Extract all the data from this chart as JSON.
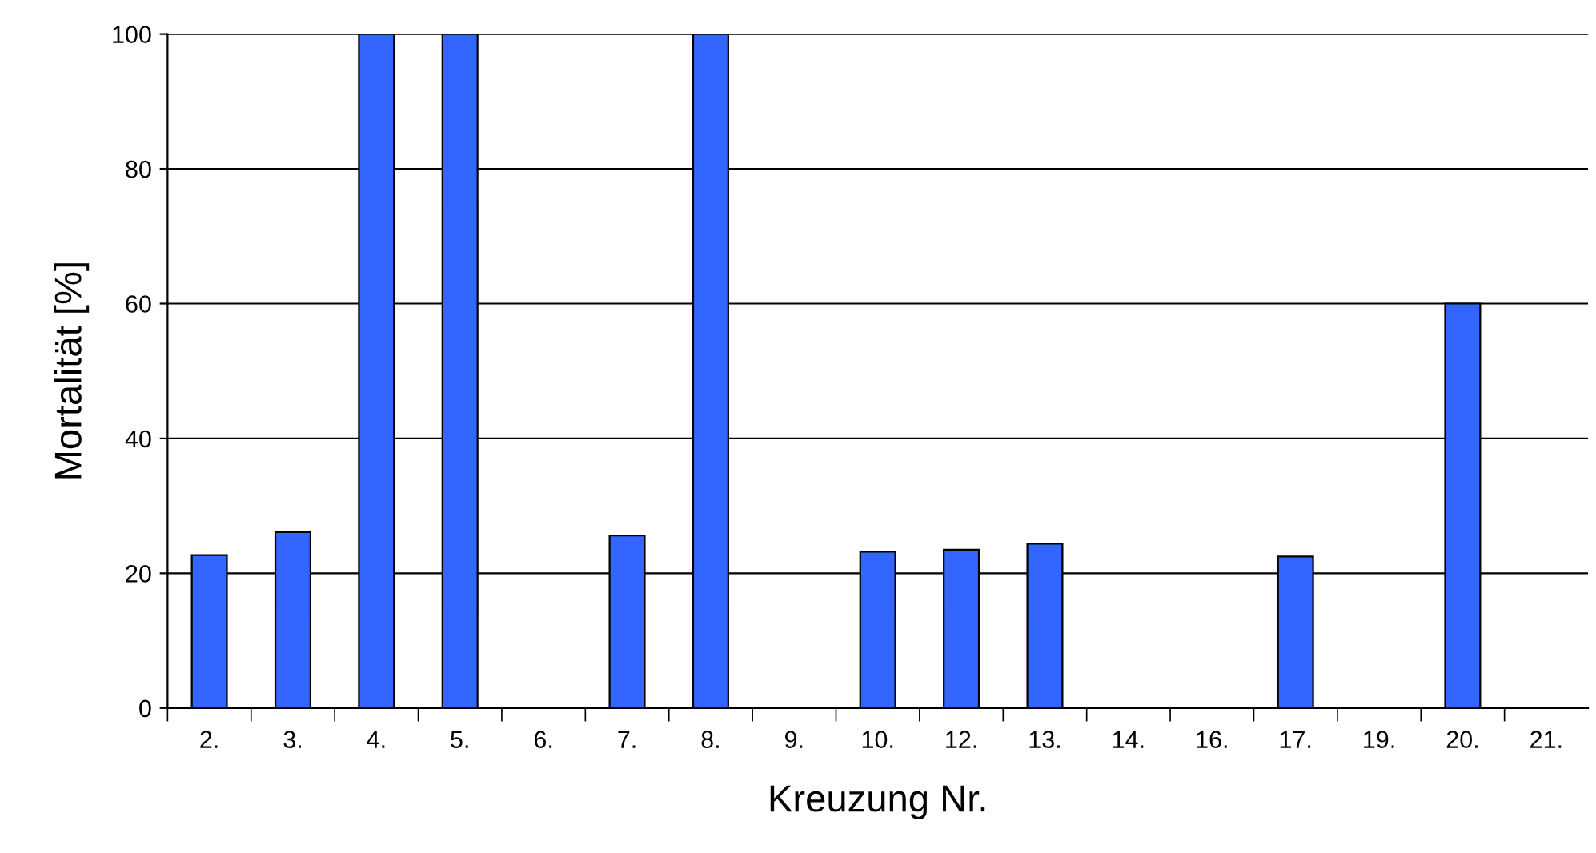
{
  "chart_data": {
    "type": "bar",
    "xlabel": "Kreuzung Nr.",
    "ylabel": "Mortalität [%]",
    "categories": [
      "2.",
      "3.",
      "4.",
      "5.",
      "6.",
      "7.",
      "8.",
      "9.",
      "10.",
      "12.",
      "13.",
      "14.",
      "16.",
      "17.",
      "19.",
      "20.",
      "21."
    ],
    "values": [
      22.7,
      26.1,
      100,
      100,
      0,
      25.6,
      100,
      0,
      23.2,
      23.5,
      24.4,
      0,
      0,
      22.5,
      0,
      60,
      0
    ],
    "color": "#3366ff",
    "ylim": [
      0,
      100
    ],
    "yticks": [
      0,
      20,
      40,
      60,
      80,
      100
    ],
    "grid": "y",
    "legend": false
  }
}
